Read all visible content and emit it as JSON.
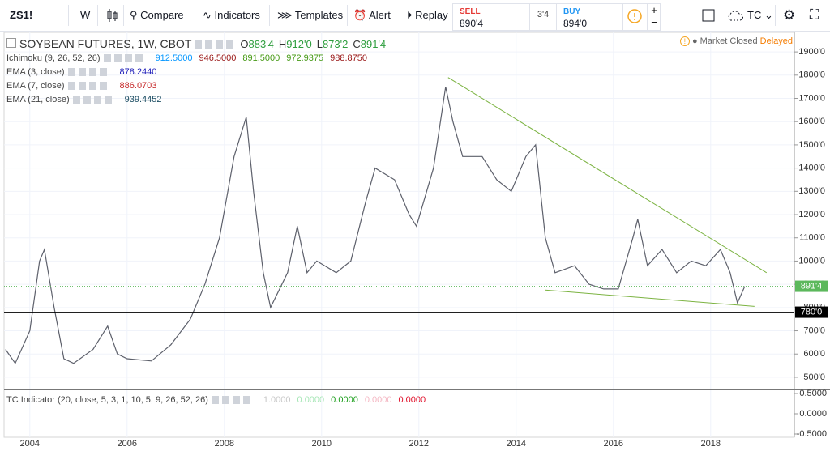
{
  "toolbar": {
    "symbol": "ZS1!",
    "interval": "W",
    "compare": "Compare",
    "indicators": "Indicators",
    "templates": "Templates",
    "alert": "Alert",
    "replay": "Replay",
    "sell_label": "SELL",
    "sell_price": "890'4",
    "spread": "3'4",
    "buy_label": "BUY",
    "buy_price": "894'0",
    "account": "TC"
  },
  "legend": {
    "title": "SOYBEAN FUTURES, 1W, CBOT",
    "ohlc": [
      {
        "key": "O",
        "value": "883'4"
      },
      {
        "key": "H",
        "value": "912'0"
      },
      {
        "key": "L",
        "value": "873'2"
      },
      {
        "key": "C",
        "value": "891'4"
      }
    ],
    "studies": [
      {
        "name": "Ichimoku (9, 26, 52, 26)",
        "values": [
          {
            "text": "912.5000",
            "color": "#0496ff"
          },
          {
            "text": "946.5000",
            "color": "#991515"
          },
          {
            "text": "891.5000",
            "color": "#459915"
          },
          {
            "text": "972.9375",
            "color": "#459915"
          },
          {
            "text": "988.8750",
            "color": "#991515"
          }
        ]
      },
      {
        "name": "EMA (3, close)",
        "values": [
          {
            "text": "878.2440",
            "color": "#1a1ab8"
          }
        ]
      },
      {
        "name": "EMA (7, close)",
        "values": [
          {
            "text": "886.0703",
            "color": "#c62828"
          }
        ]
      },
      {
        "name": "EMA (21, close)",
        "values": [
          {
            "text": "939.4452",
            "color": "#1d4e63"
          }
        ]
      }
    ]
  },
  "status": {
    "market": "Market Closed",
    "feed": "Delayed"
  },
  "chart_data": {
    "type": "line",
    "x": [
      2003.5,
      2003.7,
      2004.0,
      2004.2,
      2004.3,
      2004.5,
      2004.7,
      2004.9,
      2005.3,
      2005.6,
      2005.8,
      2006.0,
      2006.5,
      2006.9,
      2007.3,
      2007.6,
      2007.9,
      2008.2,
      2008.45,
      2008.6,
      2008.8,
      2008.95,
      2009.3,
      2009.5,
      2009.7,
      2009.9,
      2010.3,
      2010.6,
      2010.9,
      2011.1,
      2011.5,
      2011.8,
      2011.95,
      2012.3,
      2012.55,
      2012.7,
      2012.9,
      2013.3,
      2013.6,
      2013.9,
      2014.2,
      2014.4,
      2014.6,
      2014.8,
      2015.2,
      2015.5,
      2015.8,
      2016.1,
      2016.4,
      2016.5,
      2016.7,
      2017.0,
      2017.3,
      2017.6,
      2017.9,
      2018.2,
      2018.4,
      2018.55,
      2018.7
    ],
    "values": [
      620,
      560,
      700,
      1000,
      1050,
      800,
      580,
      560,
      620,
      720,
      600,
      580,
      570,
      640,
      750,
      900,
      1100,
      1450,
      1620,
      1300,
      950,
      800,
      950,
      1150,
      950,
      1000,
      950,
      1000,
      1250,
      1400,
      1350,
      1200,
      1150,
      1400,
      1750,
      1600,
      1450,
      1450,
      1350,
      1300,
      1450,
      1500,
      1100,
      950,
      980,
      900,
      880,
      880,
      1100,
      1180,
      980,
      1050,
      950,
      1000,
      980,
      1050,
      950,
      820,
      891
    ],
    "color": "#5d606b",
    "xlim": [
      2003.47,
      2019.72
    ],
    "ylim": [
      451,
      1984
    ],
    "xticks": [
      2004,
      2006,
      2008,
      2010,
      2012,
      2014,
      2016,
      2018
    ],
    "yticks": [
      {
        "value": 500,
        "label": "500'0"
      },
      {
        "value": 600,
        "label": "600'0"
      },
      {
        "value": 700,
        "label": "700'0"
      },
      {
        "value": 800,
        "label": "800'0"
      },
      {
        "value": 900,
        "label": "900'0"
      },
      {
        "value": 1000,
        "label": "1000'0"
      },
      {
        "value": 1100,
        "label": "1100'0"
      },
      {
        "value": 1200,
        "label": "1200'0"
      },
      {
        "value": 1300,
        "label": "1300'0"
      },
      {
        "value": 1400,
        "label": "1400'0"
      },
      {
        "value": 1500,
        "label": "1500'0"
      },
      {
        "value": 1600,
        "label": "1600'0"
      },
      {
        "value": 1700,
        "label": "1700'0"
      },
      {
        "value": 1800,
        "label": "1800'0"
      },
      {
        "value": 1900,
        "label": "1900'0"
      }
    ],
    "grid": true,
    "trendlines": [
      {
        "x": [
          2012.6,
          2019.15
        ],
        "values": [
          1790,
          950
        ],
        "color": "#7cb342"
      },
      {
        "x": [
          2014.6,
          2018.9
        ],
        "values": [
          875,
          805
        ],
        "color": "#7cb342"
      }
    ],
    "horizontal_lines": [
      {
        "value": 780,
        "label": "780'0",
        "color": "#000000"
      }
    ],
    "last_price": {
      "value": 891.5,
      "label": "891'4",
      "color": "#5cb85c"
    },
    "indicator": {
      "title": "TC Indicator (20, close, 5, 3, 1, 10, 5, 9, 26, 52, 26)",
      "values": [
        {
          "text": "1.0000",
          "color": "#c8c8c8"
        },
        {
          "text": "0.0000",
          "color": "#a5e6b5"
        },
        {
          "text": "0.0000",
          "color": "#1b9e1b"
        },
        {
          "text": "0.0000",
          "color": "#f4b6c2"
        },
        {
          "text": "0.0000",
          "color": "#e0102a"
        }
      ],
      "ylim": [
        -0.58,
        0.58
      ],
      "yticks": [
        {
          "value": 0.5,
          "label": "0.5000"
        },
        {
          "value": 0,
          "label": "0.0000"
        },
        {
          "value": -0.5,
          "label": "-0.5000"
        }
      ]
    }
  }
}
